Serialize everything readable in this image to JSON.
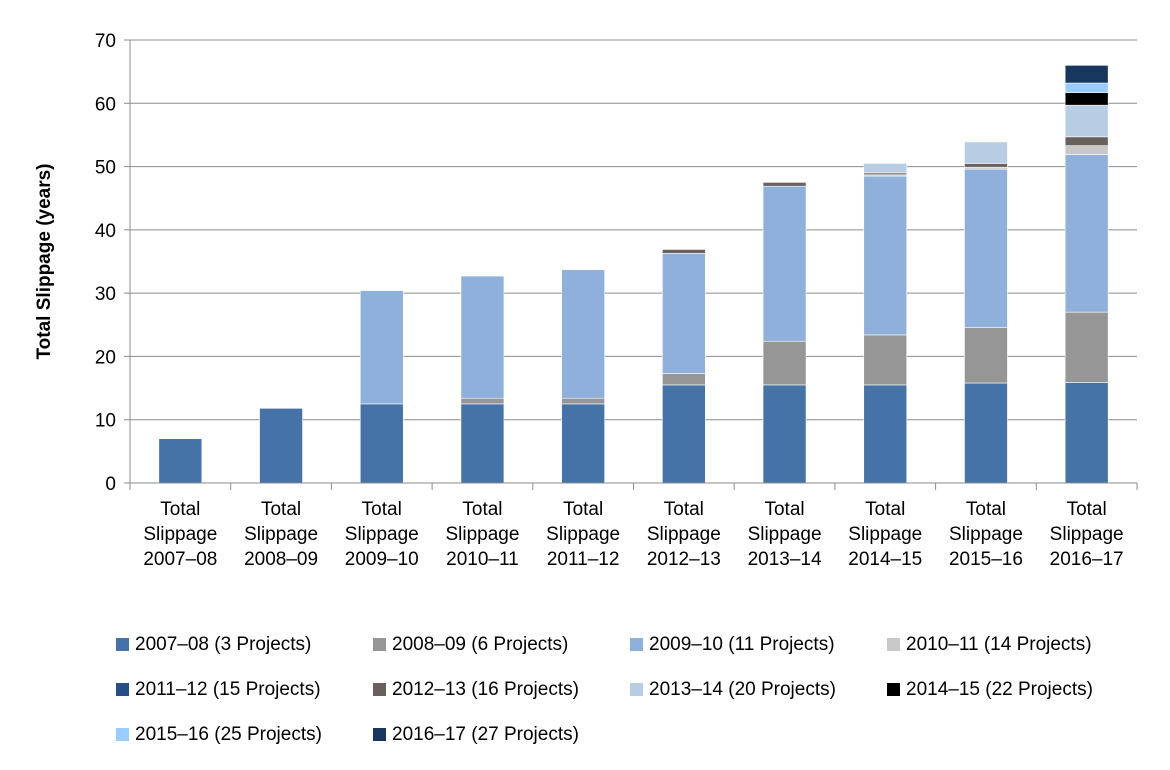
{
  "chart_data": {
    "type": "bar",
    "stacked": true,
    "ylabel": "Total Slippage (years)",
    "ylim": [
      0,
      70
    ],
    "yticks": [
      0,
      10,
      20,
      30,
      40,
      50,
      60,
      70
    ],
    "grid": true,
    "legend_position": "bottom",
    "categories": [
      [
        "Total",
        "Slippage",
        "2007–08"
      ],
      [
        "Total",
        "Slippage",
        "2008–09"
      ],
      [
        "Total",
        "Slippage",
        "2009–10"
      ],
      [
        "Total",
        "Slippage",
        "2010–11"
      ],
      [
        "Total",
        "Slippage",
        "2011–12"
      ],
      [
        "Total",
        "Slippage",
        "2012–13"
      ],
      [
        "Total",
        "Slippage",
        "2013–14"
      ],
      [
        "Total",
        "Slippage",
        "2014–15"
      ],
      [
        "Total",
        "Slippage",
        "2015–16"
      ],
      [
        "Total",
        "Slippage",
        "2016–17"
      ]
    ],
    "series": [
      {
        "name": "2007–08 (3 Projects)",
        "color": "#4572a7",
        "values": [
          7.0,
          11.8,
          12.5,
          12.5,
          12.5,
          15.5,
          15.5,
          15.5,
          15.8,
          15.9
        ]
      },
      {
        "name": "2008–09 (6 Projects)",
        "color": "#969696",
        "values": [
          0,
          0,
          0,
          0.9,
          0.9,
          1.8,
          6.9,
          7.9,
          8.8,
          11.1
        ]
      },
      {
        "name": "2009–10 (11 Projects)",
        "color": "#8eb0da",
        "values": [
          0,
          0,
          17.9,
          19.3,
          20.3,
          19.0,
          24.5,
          25.1,
          25.0,
          24.9
        ]
      },
      {
        "name": "2010–11 (14 Projects)",
        "color": "#c8c8c8",
        "values": [
          0,
          0,
          0,
          0,
          0,
          0,
          0,
          0.2,
          0.3,
          1.4
        ]
      },
      {
        "name": "2011–12 (15 Projects)",
        "color": "#254e86",
        "values": [
          0,
          0,
          0,
          0,
          0,
          0,
          0,
          0,
          0,
          0
        ]
      },
      {
        "name": "2012–13 (16 Projects)",
        "color": "#68605d",
        "values": [
          0,
          0,
          0,
          0,
          0,
          0.6,
          0.6,
          0.3,
          0.6,
          1.4
        ]
      },
      {
        "name": "2013–14 (20 Projects)",
        "color": "#b8cce4",
        "values": [
          0,
          0,
          0,
          0,
          0,
          0,
          0,
          1.5,
          3.4,
          5.0
        ]
      },
      {
        "name": "2014–15 (22 Projects)",
        "color": "#000000",
        "values": [
          0,
          0,
          0,
          0,
          0,
          0,
          0,
          0,
          0,
          2.0
        ]
      },
      {
        "name": "2015–16 (25 Projects)",
        "color": "#99ccff",
        "values": [
          0,
          0,
          0,
          0,
          0,
          0,
          0,
          0,
          0,
          1.5
        ]
      },
      {
        "name": "2016–17 (27 Projects)",
        "color": "#17375e",
        "values": [
          0,
          0,
          0,
          0,
          0,
          0,
          0,
          0,
          0,
          2.8
        ]
      }
    ],
    "legend_rows": [
      [
        0,
        1,
        2,
        3
      ],
      [
        4,
        5,
        6,
        7
      ],
      [
        8,
        9
      ]
    ]
  }
}
